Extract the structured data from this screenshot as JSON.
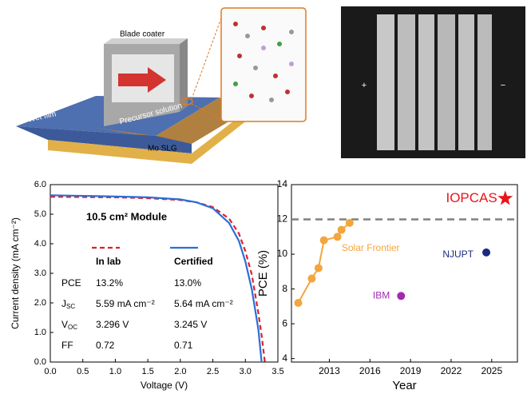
{
  "illustration": {
    "blade": "Blade coater",
    "film": "Wet film",
    "solution": "Precursor solution",
    "substrate": "Mo SLG"
  },
  "el_image": {
    "plus": "+",
    "minus": "−"
  },
  "chart_data": [
    {
      "type": "line",
      "xlabel": "Voltage (V)",
      "ylabel": "Current density (mA cm⁻²)",
      "annotation": "10.5 cm² Module",
      "table": {
        "columns": [
          "In lab",
          "Certified"
        ],
        "rows": [
          [
            {
              "main": "PCE",
              "sub": ""
            },
            "13.2%",
            "13.0%"
          ],
          [
            {
              "main": "J",
              "sub": "SC"
            },
            "5.59 mA cm⁻²",
            "5.64 mA cm⁻²"
          ],
          [
            {
              "main": "V",
              "sub": "OC"
            },
            "3.296 V",
            "3.245 V"
          ],
          [
            {
              "main": "FF",
              "sub": ""
            },
            "0.72",
            "0.71"
          ]
        ]
      },
      "x": [
        0,
        0.5,
        1.0,
        1.5,
        2.0,
        2.25,
        2.5,
        2.75,
        2.9,
        3.0,
        3.1,
        3.2,
        3.25,
        3.3
      ],
      "series": [
        {
          "name": "In lab",
          "color": "#e0202a",
          "dash": true,
          "values": [
            5.59,
            5.58,
            5.57,
            5.54,
            5.48,
            5.4,
            5.24,
            4.85,
            4.35,
            3.75,
            2.95,
            1.65,
            0.9,
            0
          ]
        },
        {
          "name": "Certified",
          "color": "#2a6fd6",
          "dash": false,
          "values": [
            5.64,
            5.62,
            5.6,
            5.57,
            5.5,
            5.4,
            5.2,
            4.7,
            4.1,
            3.4,
            2.45,
            1.1,
            0,
            null
          ]
        }
      ],
      "xlim": [
        0,
        3.5
      ],
      "xticks": [
        {
          "value": 0,
          "label": "0.0"
        },
        {
          "value": 0.5,
          "label": "0.5"
        },
        {
          "value": 1,
          "label": "1.0"
        },
        {
          "value": 1.5,
          "label": "1.5"
        },
        {
          "value": 2,
          "label": "2.0"
        },
        {
          "value": 2.5,
          "label": "2.5"
        },
        {
          "value": 3,
          "label": "3.0"
        },
        {
          "value": 3.5,
          "label": "3.5"
        }
      ],
      "ylim": [
        0,
        6
      ],
      "yticks": [
        {
          "value": 0,
          "label": "0.0"
        },
        {
          "value": 1,
          "label": "1.0"
        },
        {
          "value": 2,
          "label": "2.0"
        },
        {
          "value": 3,
          "label": "3.0"
        },
        {
          "value": 4,
          "label": "4.0"
        },
        {
          "value": 5,
          "label": "5.0"
        },
        {
          "value": 6,
          "label": "6.0"
        }
      ]
    },
    {
      "type": "scatter",
      "xlabel": "Year",
      "ylabel": "PCE (%)",
      "reference_line": 12,
      "series": [
        {
          "name": "Solar Frontier",
          "color": "#f4a53c",
          "marker": "circle",
          "connect": true,
          "x": [
            2010.7,
            2011.7,
            2012.2,
            2012.6,
            2013.6,
            2013.9,
            2014.5
          ],
          "values": [
            7.2,
            8.6,
            9.2,
            10.8,
            11.0,
            11.4,
            11.8
          ]
        },
        {
          "name": "IBM",
          "color": "#a02ab0",
          "marker": "circle",
          "connect": false,
          "x": [
            2018.3
          ],
          "values": [
            7.6
          ]
        },
        {
          "name": "NJUPT",
          "color": "#1c2a80",
          "marker": "circle",
          "connect": false,
          "x": [
            2024.6
          ],
          "values": [
            10.1
          ]
        },
        {
          "name": "IOPCAS",
          "color": "#e8141c",
          "marker": "star",
          "connect": false,
          "x": [
            2026.0
          ],
          "values": [
            13.2
          ]
        }
      ],
      "xlim": [
        2010.2,
        2026.9
      ],
      "xticks": [
        2013,
        2016,
        2019,
        2022,
        2025
      ],
      "ylim": [
        3.8,
        14
      ],
      "yticks": [
        4,
        6,
        8,
        10,
        12,
        14
      ]
    }
  ]
}
